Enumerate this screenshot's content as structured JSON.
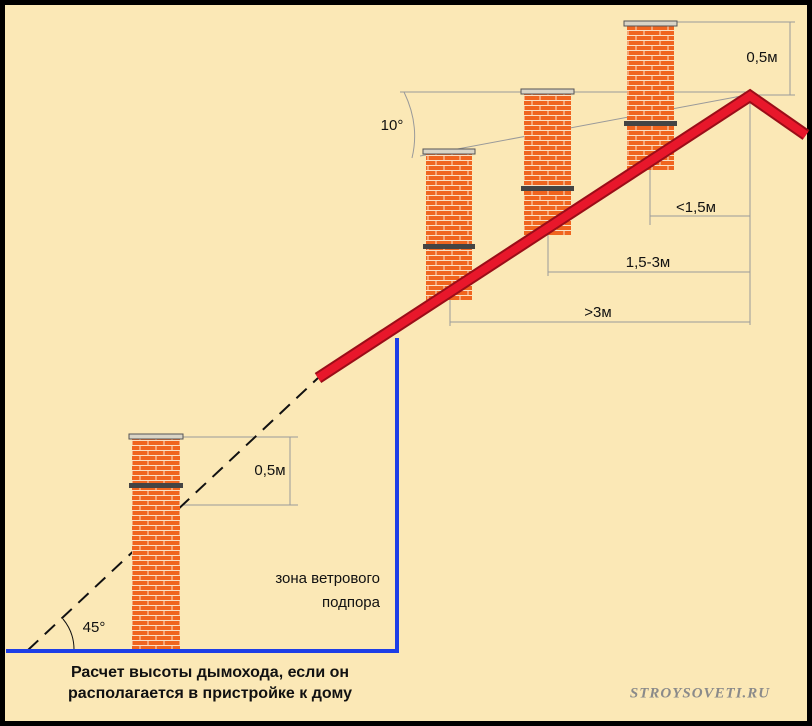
{
  "angle_top": "10°",
  "dim_top_height": "0,5м",
  "dim_near": "<1,5м",
  "dim_mid": "1,5-3м",
  "dim_far": ">3м",
  "dim_low_height": "0,5м",
  "zone_label": [
    "зона ветрового",
    "подпора"
  ],
  "angle_low": "45°",
  "caption": [
    "Расчет высоты дымохода, если он",
    "располагается в пристройке к дому"
  ],
  "watermark": "STROYSOVETI.RU"
}
